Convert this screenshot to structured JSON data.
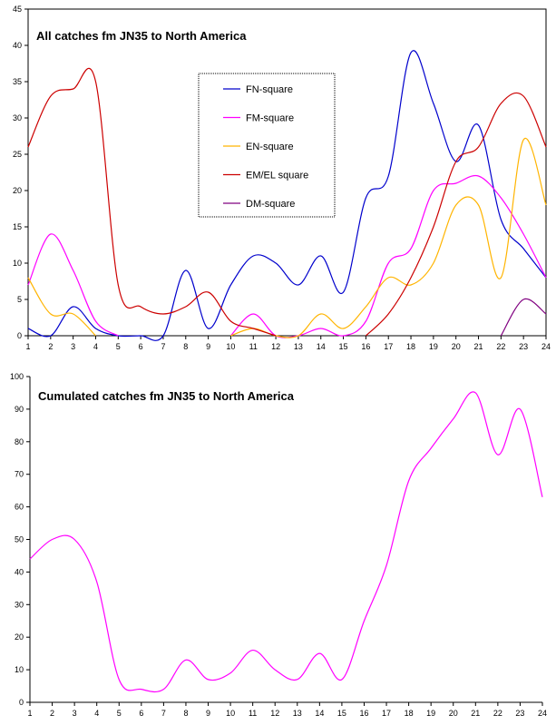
{
  "chart_data": [
    {
      "type": "line",
      "title": "All catches fm JN35 to North America",
      "xlabel": "",
      "ylabel": "",
      "x": [
        1,
        2,
        3,
        4,
        5,
        6,
        7,
        8,
        9,
        10,
        11,
        12,
        13,
        14,
        15,
        16,
        17,
        18,
        19,
        20,
        21,
        22,
        23,
        24
      ],
      "xlim": [
        1,
        24
      ],
      "ylim": [
        0,
        45
      ],
      "yticks": [
        0,
        5,
        10,
        15,
        20,
        25,
        30,
        35,
        40,
        45
      ],
      "grid": false,
      "legend": "inside-top-center",
      "series": [
        {
          "name": "FN-square",
          "color": "#0000cc",
          "values": [
            1,
            0,
            4,
            1,
            0,
            0,
            0,
            9,
            1,
            7,
            11,
            10,
            7,
            11,
            6,
            19,
            22,
            39,
            32,
            24,
            29,
            16,
            12,
            8
          ]
        },
        {
          "name": "FM-square",
          "color": "#ff00ff",
          "values": [
            7,
            14,
            9,
            2,
            0,
            null,
            null,
            null,
            null,
            0,
            3,
            0,
            0,
            1,
            0,
            2,
            10,
            12,
            20,
            21,
            22,
            19,
            14,
            8
          ]
        },
        {
          "name": "EN-square",
          "color": "#ffb400",
          "values": [
            8,
            3,
            3,
            0,
            null,
            null,
            null,
            null,
            null,
            0,
            1,
            0,
            0,
            3,
            1,
            4,
            8,
            7,
            10,
            18,
            18,
            8,
            27,
            18
          ]
        },
        {
          "name": "EM/EL square",
          "color": "#cc0000",
          "values": [
            26,
            33,
            34,
            35,
            7,
            4,
            3,
            4,
            6,
            2,
            1,
            0,
            null,
            null,
            null,
            0,
            3,
            8,
            15,
            24,
            26,
            32,
            33,
            26
          ]
        },
        {
          "name": "DM-square",
          "color": "#800080",
          "values": [
            null,
            null,
            null,
            null,
            null,
            null,
            null,
            null,
            null,
            null,
            null,
            null,
            null,
            null,
            null,
            null,
            null,
            null,
            null,
            null,
            null,
            0,
            5,
            3
          ]
        }
      ]
    },
    {
      "type": "line",
      "title": "Cumulated catches fm JN35 to North America",
      "xlabel": "",
      "ylabel": "",
      "x": [
        1,
        2,
        3,
        4,
        5,
        6,
        7,
        8,
        9,
        10,
        11,
        12,
        13,
        14,
        15,
        16,
        17,
        18,
        19,
        20,
        21,
        22,
        23,
        24
      ],
      "xlim": [
        1,
        24
      ],
      "ylim": [
        0,
        100
      ],
      "yticks": [
        0,
        10,
        20,
        30,
        40,
        50,
        60,
        70,
        80,
        90,
        100
      ],
      "grid": false,
      "series": [
        {
          "color": "#ff00ff",
          "values": [
            44,
            50,
            50,
            37,
            7,
            4,
            4,
            13,
            7,
            9,
            16,
            10,
            7,
            15,
            7,
            25,
            42,
            68,
            78,
            87,
            95,
            76,
            90,
            63
          ]
        }
      ]
    }
  ]
}
